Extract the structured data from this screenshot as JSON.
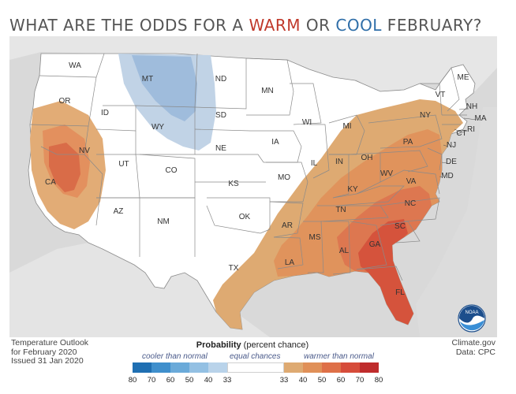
{
  "title": {
    "prefix": "WHAT ARE THE ODDS FOR A ",
    "warm": "WARM",
    "middle": " OR ",
    "cool": "COOL",
    "suffix": " FEBRUARY?"
  },
  "map": {
    "states": [
      "WA",
      "OR",
      "CA",
      "NV",
      "ID",
      "MT",
      "WY",
      "UT",
      "AZ",
      "CO",
      "NM",
      "ND",
      "SD",
      "NE",
      "KS",
      "OK",
      "TX",
      "MN",
      "IA",
      "MO",
      "AR",
      "LA",
      "WI",
      "IL",
      "MI",
      "IN",
      "OH",
      "KY",
      "TN",
      "MS",
      "AL",
      "GA",
      "FL",
      "SC",
      "NC",
      "VA",
      "WV",
      "PA",
      "NY",
      "VT",
      "NH",
      "ME",
      "MA",
      "CT",
      "RI",
      "NJ",
      "DE",
      "MD"
    ]
  },
  "footer": {
    "left_lines": [
      "Temperature Outlook",
      "for February 2020",
      "Issued 31 Jan 2020"
    ],
    "right_lines": [
      "Climate.gov",
      "Data: CPC"
    ]
  },
  "legend": {
    "title_bold": "Probability",
    "title_rest": " (percent chance)",
    "cooler": "cooler than normal",
    "equal": "equal chances",
    "warmer": "warmer than normal",
    "ticks": [
      "80",
      "70",
      "60",
      "50",
      "40",
      "33",
      "33",
      "40",
      "50",
      "60",
      "70",
      "80"
    ],
    "cool_colors": [
      "#1f6fb2",
      "#3f8fcc",
      "#6aaad9",
      "#93c0e3",
      "#b9d3ea"
    ],
    "warm_colors": [
      "#deaa72",
      "#e09058",
      "#de7048",
      "#d64c3a",
      "#bf2c2c"
    ]
  },
  "noaa_logo": "NOAA"
}
